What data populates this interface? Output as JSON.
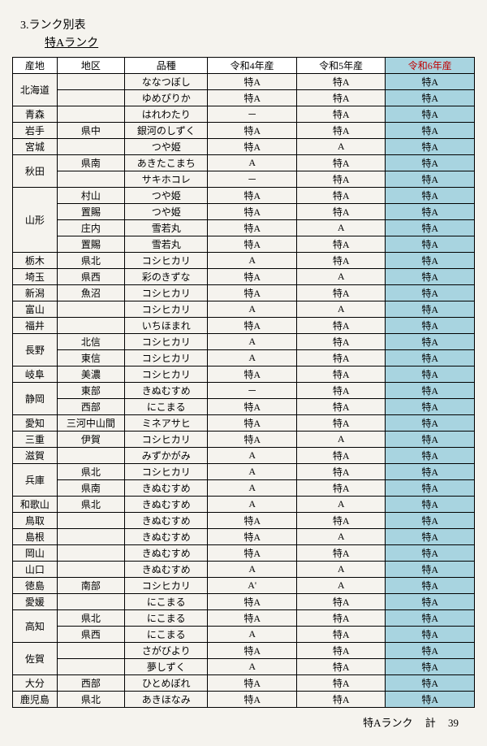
{
  "title": "3.ランク別表",
  "subtitle": "特Aランク",
  "colors": {
    "highlight_bg": "#a8d4e0",
    "highlight_header_text": "#c00000",
    "border": "#000000",
    "page_bg": "#f5f3ee"
  },
  "header": {
    "pref": "産地",
    "area": "地区",
    "variety": "品種",
    "y4": "令和4年産",
    "y5": "令和5年産",
    "y6": "令和6年産"
  },
  "rows": [
    {
      "pref": "北海道",
      "area": "",
      "variety": "ななつぼし",
      "y4": "特A",
      "y5": "特A",
      "y6": "特A",
      "rs": 2
    },
    {
      "pref": "",
      "area": "",
      "variety": "ゆめぴりか",
      "y4": "特A",
      "y5": "特A",
      "y6": "特A"
    },
    {
      "pref": "青森",
      "area": "",
      "variety": "はれわたり",
      "y4": "－",
      "y5": "特A",
      "y6": "特A"
    },
    {
      "pref": "岩手",
      "area": "県中",
      "variety": "銀河のしずく",
      "y4": "特A",
      "y5": "特A",
      "y6": "特A"
    },
    {
      "pref": "宮城",
      "area": "",
      "variety": "つや姫",
      "y4": "特A",
      "y5": "A",
      "y6": "特A"
    },
    {
      "pref": "秋田",
      "area": "県南",
      "variety": "あきたこまち",
      "y4": "A",
      "y5": "特A",
      "y6": "特A",
      "rs": 2
    },
    {
      "pref": "",
      "area": "",
      "variety": "サキホコレ",
      "y4": "－",
      "y5": "特A",
      "y6": "特A"
    },
    {
      "pref": "山形",
      "area": "村山",
      "variety": "つや姫",
      "y4": "特A",
      "y5": "特A",
      "y6": "特A",
      "rs": 4
    },
    {
      "pref": "",
      "area": "置賜",
      "variety": "つや姫",
      "y4": "特A",
      "y5": "特A",
      "y6": "特A"
    },
    {
      "pref": "",
      "area": "庄内",
      "variety": "雪若丸",
      "y4": "特A",
      "y5": "A",
      "y6": "特A"
    },
    {
      "pref": "",
      "area": "置賜",
      "variety": "雪若丸",
      "y4": "特A",
      "y5": "特A",
      "y6": "特A"
    },
    {
      "pref": "栃木",
      "area": "県北",
      "variety": "コシヒカリ",
      "y4": "A",
      "y5": "特A",
      "y6": "特A"
    },
    {
      "pref": "埼玉",
      "area": "県西",
      "variety": "彩のきずな",
      "y4": "特A",
      "y5": "A",
      "y6": "特A"
    },
    {
      "pref": "新潟",
      "area": "魚沼",
      "variety": "コシヒカリ",
      "y4": "特A",
      "y5": "特A",
      "y6": "特A"
    },
    {
      "pref": "富山",
      "area": "",
      "variety": "コシヒカリ",
      "y4": "A",
      "y5": "A",
      "y6": "特A"
    },
    {
      "pref": "福井",
      "area": "",
      "variety": "いちほまれ",
      "y4": "特A",
      "y5": "特A",
      "y6": "特A"
    },
    {
      "pref": "長野",
      "area": "北信",
      "variety": "コシヒカリ",
      "y4": "A",
      "y5": "特A",
      "y6": "特A",
      "rs": 2
    },
    {
      "pref": "",
      "area": "東信",
      "variety": "コシヒカリ",
      "y4": "A",
      "y5": "特A",
      "y6": "特A"
    },
    {
      "pref": "岐阜",
      "area": "美濃",
      "variety": "コシヒカリ",
      "y4": "特A",
      "y5": "特A",
      "y6": "特A"
    },
    {
      "pref": "静岡",
      "area": "東部",
      "variety": "きぬむすめ",
      "y4": "－",
      "y5": "特A",
      "y6": "特A",
      "rs": 2
    },
    {
      "pref": "",
      "area": "西部",
      "variety": "にこまる",
      "y4": "特A",
      "y5": "特A",
      "y6": "特A"
    },
    {
      "pref": "愛知",
      "area": "三河中山間",
      "variety": "ミネアサヒ",
      "y4": "特A",
      "y5": "特A",
      "y6": "特A"
    },
    {
      "pref": "三重",
      "area": "伊賀",
      "variety": "コシヒカリ",
      "y4": "特A",
      "y5": "A",
      "y6": "特A"
    },
    {
      "pref": "滋賀",
      "area": "",
      "variety": "みずかがみ",
      "y4": "A",
      "y5": "特A",
      "y6": "特A"
    },
    {
      "pref": "兵庫",
      "area": "県北",
      "variety": "コシヒカリ",
      "y4": "A",
      "y5": "特A",
      "y6": "特A",
      "rs": 2
    },
    {
      "pref": "",
      "area": "県南",
      "variety": "きぬむすめ",
      "y4": "A",
      "y5": "特A",
      "y6": "特A"
    },
    {
      "pref": "和歌山",
      "area": "県北",
      "variety": "きぬむすめ",
      "y4": "A",
      "y5": "A",
      "y6": "特A"
    },
    {
      "pref": "鳥取",
      "area": "",
      "variety": "きぬむすめ",
      "y4": "特A",
      "y5": "特A",
      "y6": "特A"
    },
    {
      "pref": "島根",
      "area": "",
      "variety": "きぬむすめ",
      "y4": "特A",
      "y5": "A",
      "y6": "特A"
    },
    {
      "pref": "岡山",
      "area": "",
      "variety": "きぬむすめ",
      "y4": "特A",
      "y5": "特A",
      "y6": "特A"
    },
    {
      "pref": "山口",
      "area": "",
      "variety": "きぬむすめ",
      "y4": "A",
      "y5": "A",
      "y6": "特A"
    },
    {
      "pref": "徳島",
      "area": "南部",
      "variety": "コシヒカリ",
      "y4": "A'",
      "y5": "A",
      "y6": "特A"
    },
    {
      "pref": "愛媛",
      "area": "",
      "variety": "にこまる",
      "y4": "特A",
      "y5": "特A",
      "y6": "特A"
    },
    {
      "pref": "高知",
      "area": "県北",
      "variety": "にこまる",
      "y4": "特A",
      "y5": "特A",
      "y6": "特A",
      "rs": 2
    },
    {
      "pref": "",
      "area": "県西",
      "variety": "にこまる",
      "y4": "A",
      "y5": "特A",
      "y6": "特A"
    },
    {
      "pref": "佐賀",
      "area": "",
      "variety": "さがびより",
      "y4": "特A",
      "y5": "特A",
      "y6": "特A",
      "rs": 2
    },
    {
      "pref": "",
      "area": "",
      "variety": "夢しずく",
      "y4": "A",
      "y5": "特A",
      "y6": "特A"
    },
    {
      "pref": "大分",
      "area": "西部",
      "variety": "ひとめぼれ",
      "y4": "特A",
      "y5": "特A",
      "y6": "特A"
    },
    {
      "pref": "鹿児島",
      "area": "県北",
      "variety": "あきほなみ",
      "y4": "特A",
      "y5": "特A",
      "y6": "特A"
    }
  ],
  "summary": {
    "label": "特Aランク",
    "count_label": "計",
    "count": "39"
  }
}
